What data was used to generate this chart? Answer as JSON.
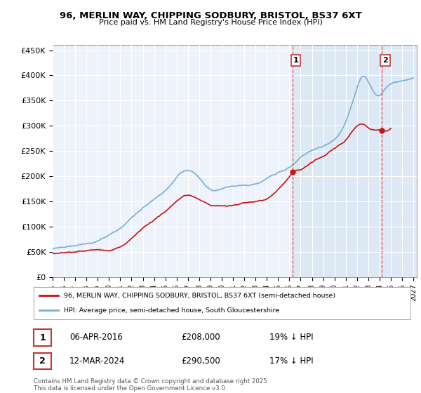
{
  "title_line1": "96, MERLIN WAY, CHIPPING SODBURY, BRISTOL, BS37 6XT",
  "title_line2": "Price paid vs. HM Land Registry's House Price Index (HPI)",
  "ylabel_ticks": [
    "£0",
    "£50K",
    "£100K",
    "£150K",
    "£200K",
    "£250K",
    "£300K",
    "£350K",
    "£400K",
    "£450K"
  ],
  "ytick_vals": [
    0,
    50000,
    100000,
    150000,
    200000,
    250000,
    300000,
    350000,
    400000,
    450000
  ],
  "ylim": [
    0,
    460000
  ],
  "xlim_start": 1995.0,
  "xlim_end": 2027.3,
  "xtick_years": [
    1995,
    1996,
    1997,
    1998,
    1999,
    2000,
    2001,
    2002,
    2003,
    2004,
    2005,
    2006,
    2007,
    2008,
    2009,
    2010,
    2011,
    2012,
    2013,
    2014,
    2015,
    2016,
    2017,
    2018,
    2019,
    2020,
    2021,
    2022,
    2023,
    2024,
    2025,
    2026,
    2027
  ],
  "hpi_color": "#7aaed6",
  "price_color": "#cc1111",
  "marker1_x": 2016.27,
  "marker1_y": 208000,
  "marker2_x": 2024.2,
  "marker2_y": 290500,
  "vline1_x": 2016.27,
  "vline2_x": 2024.2,
  "legend_label1": "96, MERLIN WAY, CHIPPING SODBURY, BRISTOL, BS37 6XT (semi-detached house)",
  "legend_label2": "HPI: Average price, semi-detached house, South Gloucestershire",
  "annotation1_date": "06-APR-2016",
  "annotation1_price": "£208,000",
  "annotation1_hpi": "19% ↓ HPI",
  "annotation2_date": "12-MAR-2024",
  "annotation2_price": "£290,500",
  "annotation2_hpi": "17% ↓ HPI",
  "footer": "Contains HM Land Registry data © Crown copyright and database right 2025.\nThis data is licensed under the Open Government Licence v3.0.",
  "bg_color": "#ffffff",
  "chart_bg": "#eef2fa",
  "grid_color": "#ffffff",
  "shade_color": "#dde8f5",
  "hatch_fill": "#dde8f5"
}
